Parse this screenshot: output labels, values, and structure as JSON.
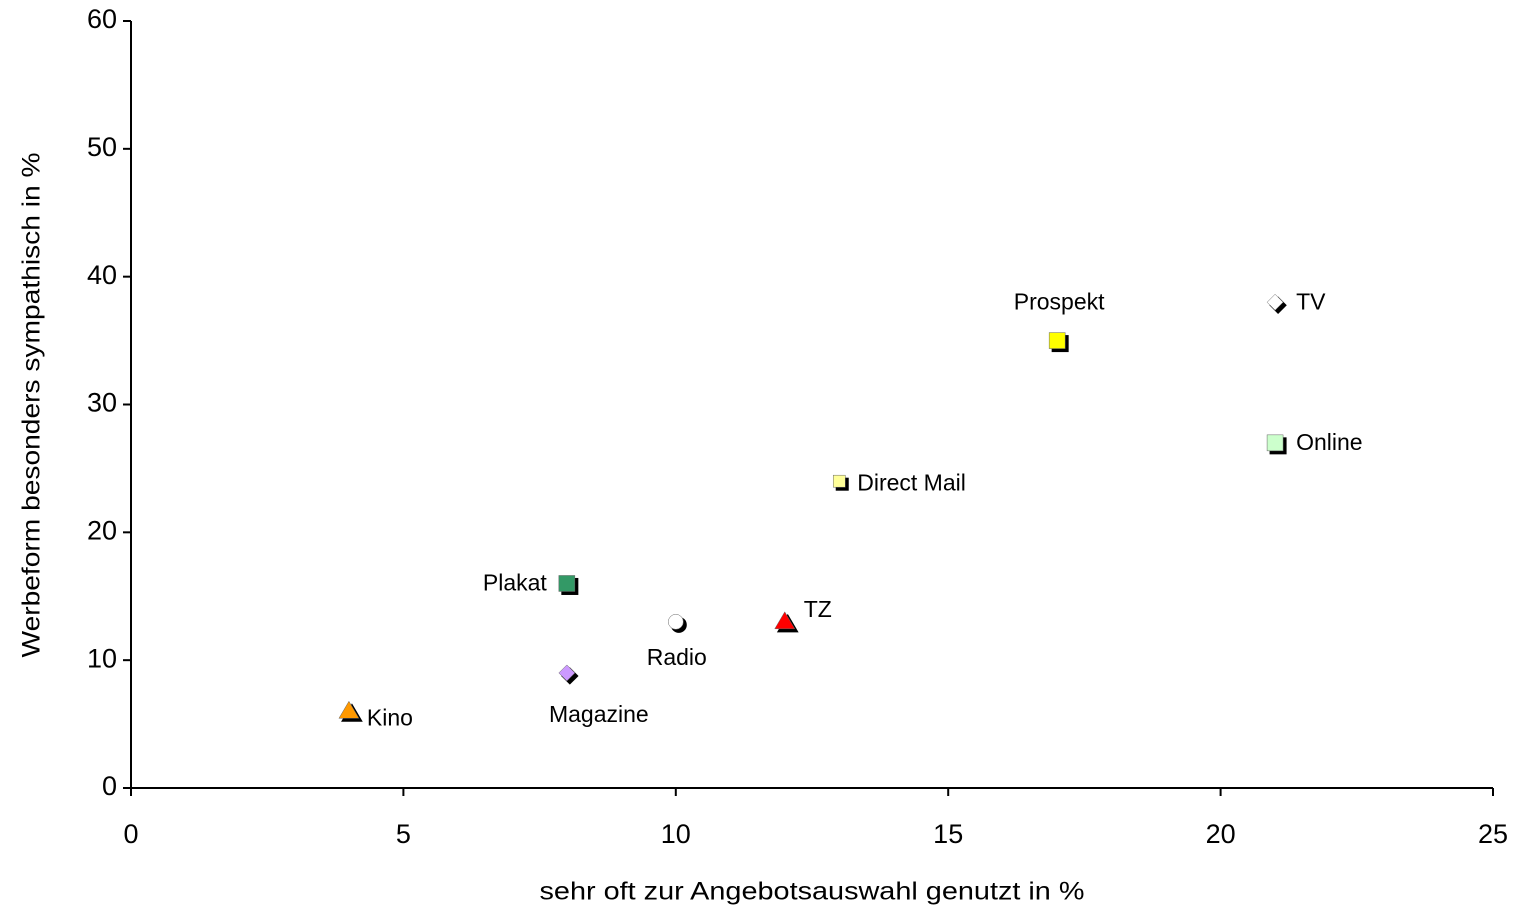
{
  "chart_data": {
    "type": "scatter",
    "x_label": "sehr oft zur Angebotsauswahl genutzt in %",
    "y_label": "Werbeform besonders sympathisch in %",
    "xlim": [
      0,
      25
    ],
    "xticks": [
      0,
      5,
      10,
      15,
      20,
      25
    ],
    "ylim": [
      0,
      60
    ],
    "yticks": [
      0,
      10,
      20,
      30,
      40,
      50,
      60
    ],
    "grid": false,
    "series": [
      {
        "name": "Kino",
        "color": "#ff9900",
        "marker": "triangle",
        "x": [
          4
        ],
        "values": [
          6
        ]
      },
      {
        "name": "Magazine",
        "color": "#cc99ff",
        "marker": "diamond",
        "x": [
          8
        ],
        "values": [
          9
        ]
      },
      {
        "name": "Plakat",
        "color": "#339966",
        "marker": "square",
        "x": [
          8
        ],
        "values": [
          16
        ]
      },
      {
        "name": "Radio",
        "color": "#ffffff",
        "marker": "circle",
        "x": [
          10
        ],
        "values": [
          13
        ]
      },
      {
        "name": "TZ",
        "color": "#ff0000",
        "marker": "triangle",
        "x": [
          12
        ],
        "values": [
          13
        ]
      },
      {
        "name": "Direct Mail",
        "color": "#ffff99",
        "marker": "small-square",
        "x": [
          13
        ],
        "values": [
          24
        ]
      },
      {
        "name": "Prospekt",
        "color": "#ffff00",
        "marker": "square",
        "x": [
          17
        ],
        "values": [
          35
        ]
      },
      {
        "name": "TV",
        "color": "#ffffff",
        "marker": "diamond",
        "x": [
          21
        ],
        "values": [
          38
        ]
      },
      {
        "name": "Online",
        "color": "#ccffcc",
        "marker": "square",
        "x": [
          21
        ],
        "values": [
          27
        ]
      }
    ]
  }
}
